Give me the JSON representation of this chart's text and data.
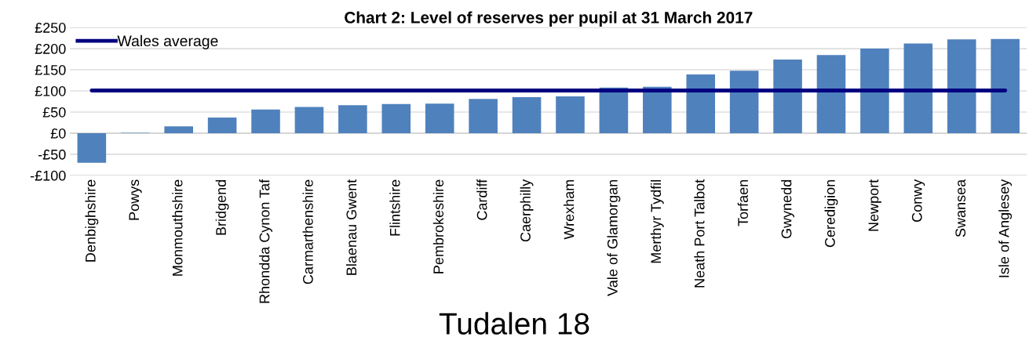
{
  "chart_data": {
    "type": "bar",
    "title": "Chart 2: Level of reserves per pupil at 31 March 2017",
    "categories": [
      "Denbighshire",
      "Powys",
      "Monmouthshire",
      "Bridgend",
      "Rhondda Cynon Taf",
      "Carmarthenshire",
      "Blaenau Gwent",
      "Flintshire",
      "Pembrokeshire",
      "Cardiff",
      "Caerphilly",
      "Wrexham",
      "Vale of Glamorgan",
      "Merthyr Tydfil",
      "Neath Port Talbot",
      "Torfaen",
      "Gwynedd",
      "Ceredigion",
      "Newport",
      "Conwy",
      "Swansea",
      "Isle of Anglesey"
    ],
    "series": [
      {
        "color": "#4f81bd",
        "values": [
          -70,
          1,
          16,
          37,
          56,
          62,
          66,
          69,
          70,
          81,
          85,
          87,
          108,
          110,
          139,
          148,
          174,
          185,
          200,
          212,
          222,
          223
        ]
      },
      {
        "type": "line",
        "name": "Wales average",
        "color": "#000080",
        "values": [
          101,
          101,
          101,
          101,
          101,
          101,
          101,
          101,
          101,
          101,
          101,
          101,
          101,
          101,
          101,
          101,
          101,
          101,
          101,
          101,
          101,
          101
        ]
      }
    ],
    "ylim": [
      -100,
      250
    ],
    "yticks": [
      {
        "value": -100,
        "label": "-£100"
      },
      {
        "value": -50,
        "label": "-£50"
      },
      {
        "value": 0,
        "label": "£0"
      },
      {
        "value": 50,
        "label": "£50"
      },
      {
        "value": 100,
        "label": "£100"
      },
      {
        "value": 150,
        "label": "£150"
      },
      {
        "value": 200,
        "label": "£200"
      },
      {
        "value": 250,
        "label": "£250"
      }
    ],
    "grid": "y",
    "legend": "top left",
    "marker": "none",
    "line_style": "solid",
    "annotations": [
      "Tudalen 18"
    ]
  }
}
